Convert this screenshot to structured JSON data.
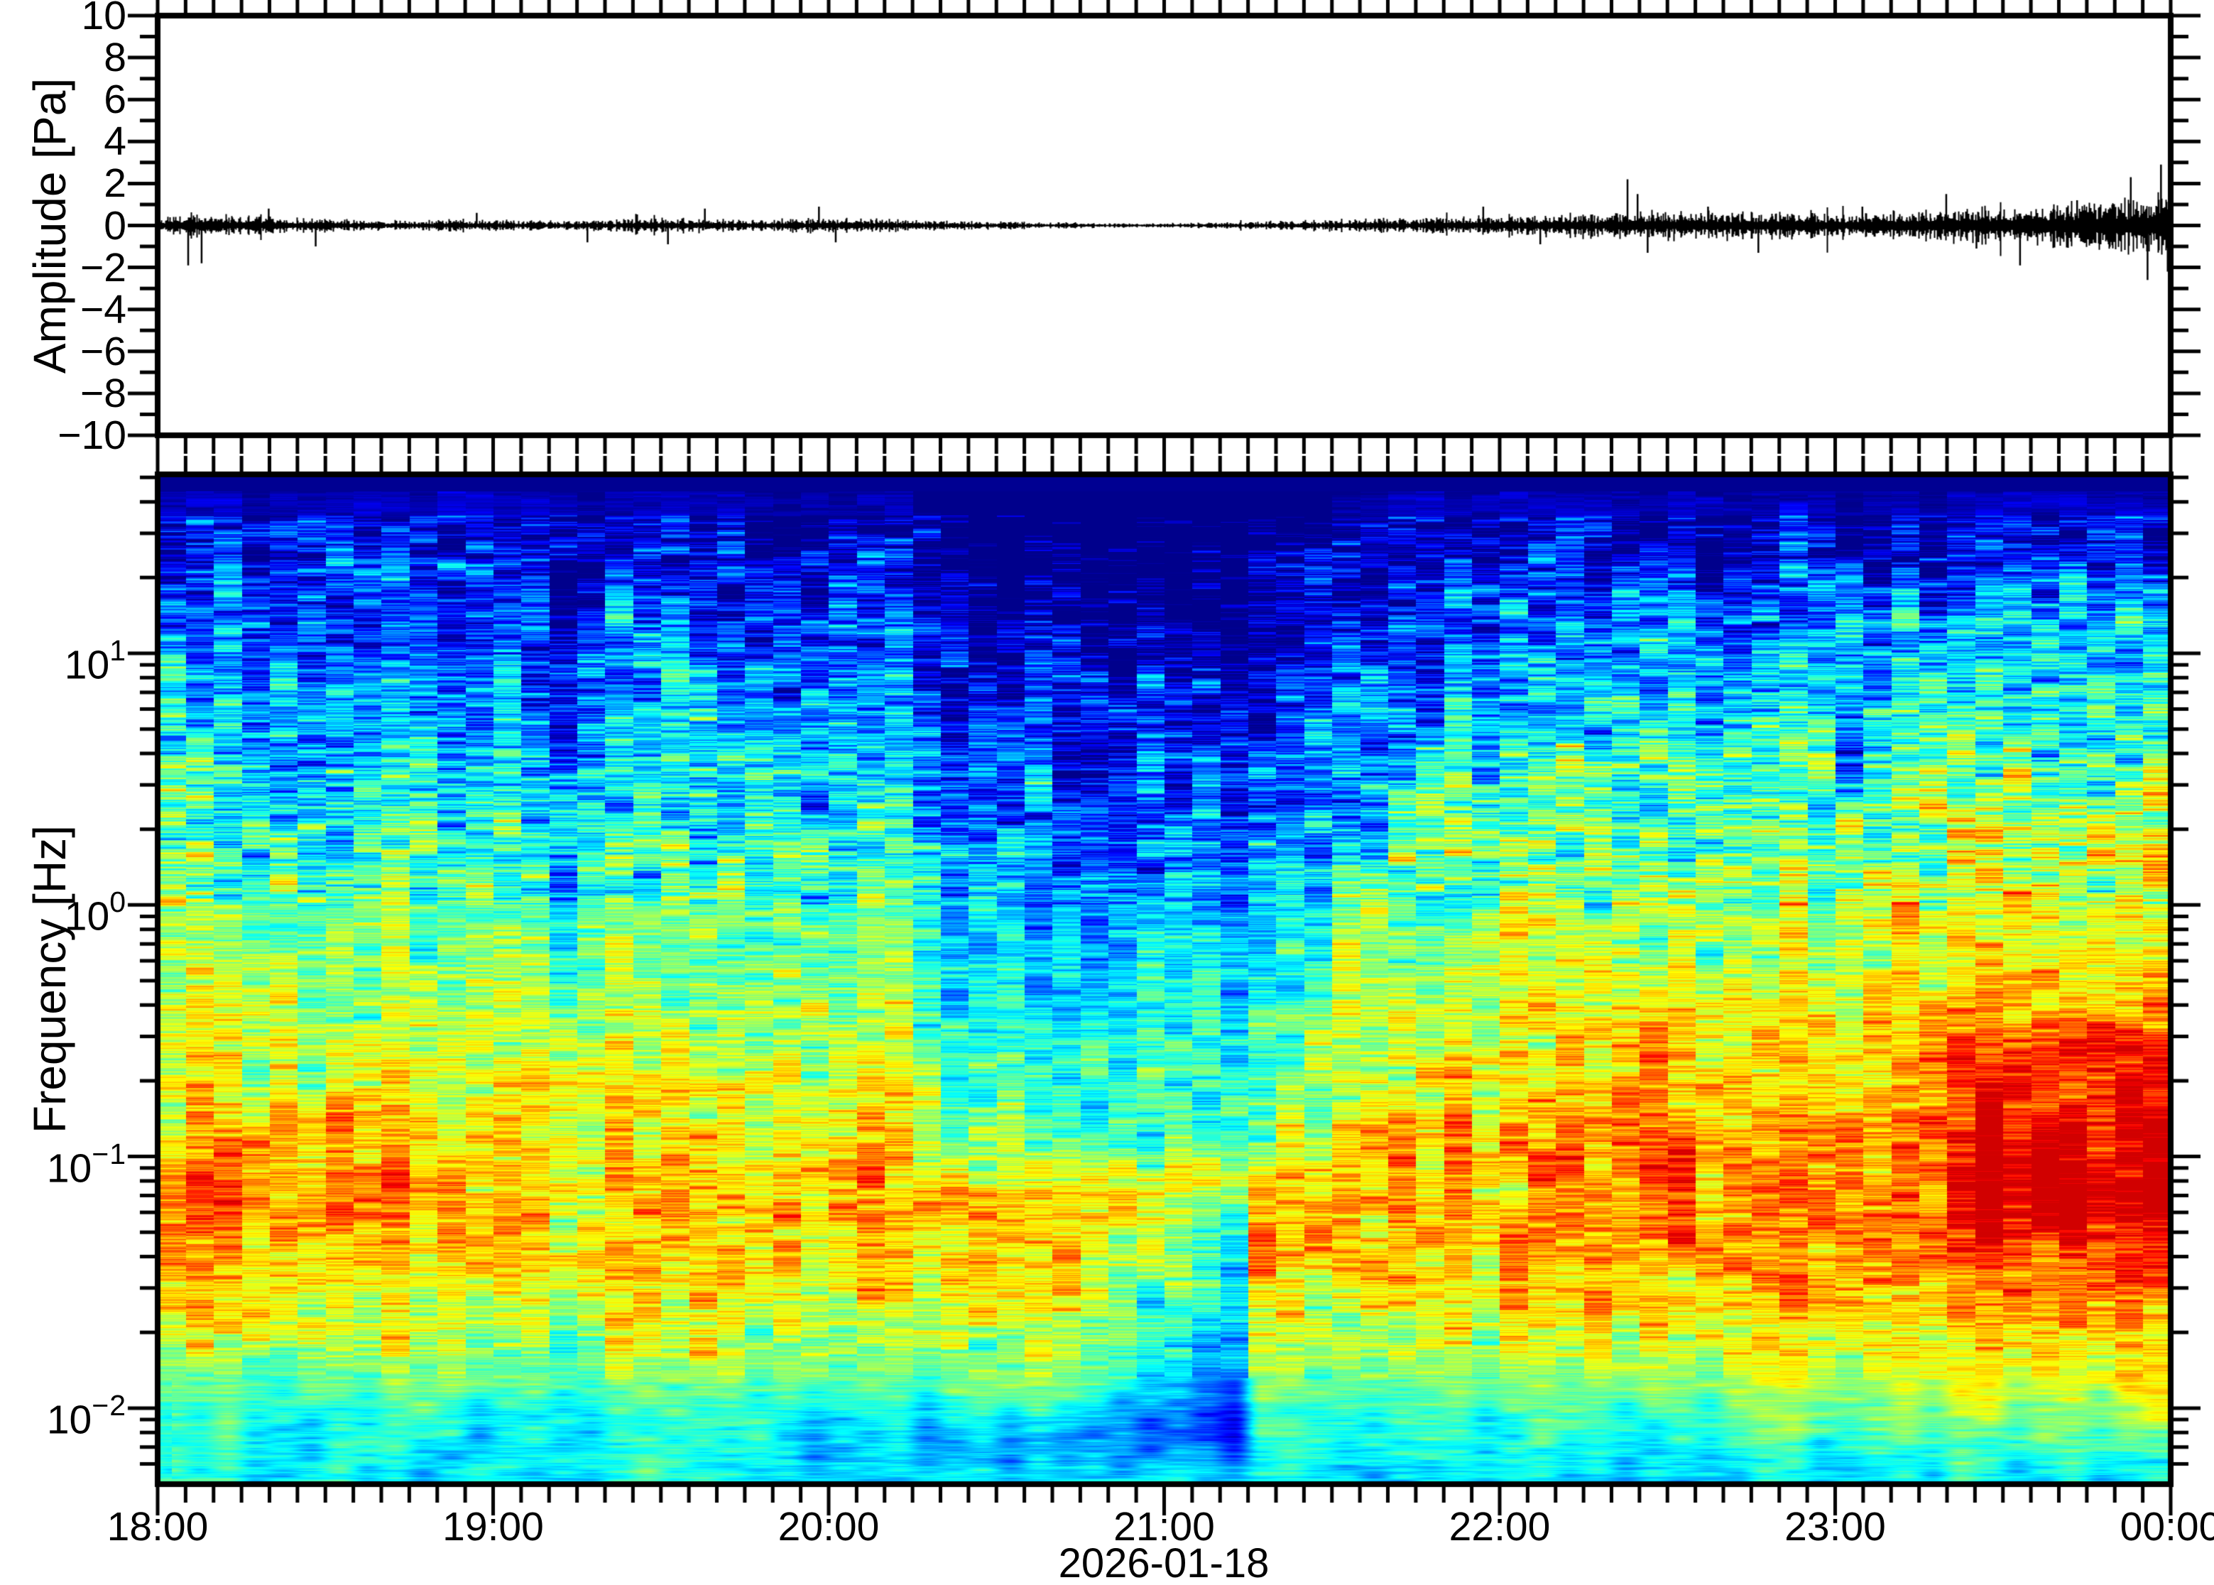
{
  "figure": {
    "background": "#ffffff",
    "frame_color": "#000000",
    "trace_color": "#000000",
    "date_label": "2026-01-18"
  },
  "chart_data": [
    {
      "type": "line",
      "title": "",
      "ylabel": "Amplitude [Pa]",
      "xlabel": "",
      "ylim": [
        -10,
        10
      ],
      "x_span_hours": 6,
      "x_start": "18:00",
      "x_end": "00:00",
      "y_ticks": [
        {
          "v": 10,
          "label": "10"
        },
        {
          "v": 8,
          "label": "8"
        },
        {
          "v": 6,
          "label": "6"
        },
        {
          "v": 4,
          "label": "4"
        },
        {
          "v": 2,
          "label": "2"
        },
        {
          "v": 0,
          "label": "0"
        },
        {
          "v": -2,
          "label": "−2"
        },
        {
          "v": -4,
          "label": "−4"
        },
        {
          "v": -6,
          "label": "−6"
        },
        {
          "v": -8,
          "label": "−8"
        },
        {
          "v": -10,
          "label": "−10"
        }
      ],
      "y_minor_step": 1,
      "waveform": {
        "mean_pa": 0,
        "envelope_pa": [
          [
            0.0,
            0.16
          ],
          [
            0.08,
            0.3
          ],
          [
            0.15,
            0.34
          ],
          [
            0.2,
            0.27
          ],
          [
            0.3,
            0.22
          ],
          [
            0.45,
            0.18
          ],
          [
            0.6,
            0.15
          ],
          [
            0.75,
            0.13
          ],
          [
            0.9,
            0.16
          ],
          [
            1.05,
            0.13
          ],
          [
            1.2,
            0.13
          ],
          [
            1.35,
            0.15
          ],
          [
            1.5,
            0.18
          ],
          [
            1.6,
            0.2
          ],
          [
            1.75,
            0.15
          ],
          [
            1.9,
            0.18
          ],
          [
            2.05,
            0.18
          ],
          [
            2.2,
            0.15
          ],
          [
            2.35,
            0.12
          ],
          [
            2.5,
            0.1
          ],
          [
            2.65,
            0.08
          ],
          [
            2.8,
            0.06
          ],
          [
            2.95,
            0.06
          ],
          [
            3.1,
            0.07
          ],
          [
            3.25,
            0.09
          ],
          [
            3.4,
            0.12
          ],
          [
            3.55,
            0.16
          ],
          [
            3.7,
            0.19
          ],
          [
            3.85,
            0.22
          ],
          [
            4.0,
            0.25
          ],
          [
            4.15,
            0.28
          ],
          [
            4.3,
            0.33
          ],
          [
            4.45,
            0.38
          ],
          [
            4.6,
            0.34
          ],
          [
            4.75,
            0.36
          ],
          [
            4.9,
            0.33
          ],
          [
            5.0,
            0.3
          ],
          [
            5.1,
            0.33
          ],
          [
            5.2,
            0.35
          ],
          [
            5.35,
            0.42
          ],
          [
            5.5,
            0.48
          ],
          [
            5.65,
            0.55
          ],
          [
            5.8,
            0.65
          ],
          [
            5.9,
            0.72
          ],
          [
            6.0,
            0.8
          ]
        ],
        "spikes_pa": [
          [
            0.09,
            -1.9
          ],
          [
            0.13,
            -1.8
          ],
          [
            0.33,
            0.8
          ],
          [
            0.47,
            -1.0
          ],
          [
            0.95,
            0.6
          ],
          [
            1.28,
            -0.8
          ],
          [
            1.52,
            -0.9
          ],
          [
            1.63,
            0.8
          ],
          [
            1.97,
            0.9
          ],
          [
            2.02,
            -0.8
          ],
          [
            3.95,
            0.9
          ],
          [
            4.12,
            -0.9
          ],
          [
            4.38,
            2.2
          ],
          [
            4.41,
            1.5
          ],
          [
            4.44,
            -1.3
          ],
          [
            4.62,
            0.9
          ],
          [
            4.77,
            -1.3
          ],
          [
            5.08,
            0.9
          ],
          [
            5.33,
            1.5
          ],
          [
            5.42,
            -1.1
          ],
          [
            5.55,
            -1.9
          ],
          [
            5.72,
            1.2
          ],
          [
            5.88,
            2.3
          ],
          [
            5.93,
            -2.6
          ],
          [
            5.97,
            2.9
          ],
          [
            5.99,
            -2.2
          ]
        ]
      }
    },
    {
      "type": "heatmap",
      "title": "",
      "ylabel": "Frequency [Hz]",
      "xlabel": "2026-01-18",
      "y_scale": "log",
      "freq_limits_hz": [
        0.005,
        51.5
      ],
      "time_span_hours": 6,
      "x_tick_labels": [
        {
          "h": 0,
          "label": "18:00"
        },
        {
          "h": 1,
          "label": "19:00"
        },
        {
          "h": 2,
          "label": "20:00"
        },
        {
          "h": 3,
          "label": "21:00"
        },
        {
          "h": 4,
          "label": "22:00"
        },
        {
          "h": 5,
          "label": "23:00"
        },
        {
          "h": 6,
          "label": "00:00"
        }
      ],
      "x_minor_minutes": 5,
      "freq_ticks": [
        {
          "exp": 1,
          "base": "10",
          "exp_label": "1"
        },
        {
          "exp": 0,
          "base": "10",
          "exp_label": "0"
        },
        {
          "exp": -1,
          "base": "10",
          "exp_label": "−1"
        },
        {
          "exp": -2,
          "base": "10",
          "exp_label": "−2"
        }
      ],
      "colormap": "jet",
      "column_minutes": 5,
      "top_band": {
        "log_f_above": 1.645,
        "value": 0.018
      },
      "base_profile_logf_value": [
        [
          -2.3,
          0.36
        ],
        [
          -2.15,
          0.38
        ],
        [
          -2.0,
          0.42
        ],
        [
          -1.8,
          0.52
        ],
        [
          -1.6,
          0.6
        ],
        [
          -1.4,
          0.66
        ],
        [
          -1.1,
          0.68
        ],
        [
          -0.8,
          0.62
        ],
        [
          -0.4,
          0.55
        ],
        [
          0.0,
          0.47
        ],
        [
          0.4,
          0.38
        ],
        [
          0.7,
          0.3
        ],
        [
          1.0,
          0.22
        ],
        [
          1.3,
          0.13
        ],
        [
          1.5,
          0.07
        ],
        [
          1.72,
          0.03
        ]
      ],
      "time_features": [
        {
          "name": "evening-quiet-period",
          "t0": 2.25,
          "t1": 3.5,
          "l0": -1.2,
          "l1": 1.8,
          "dv": -0.17,
          "ramp": false
        },
        {
          "name": "2100-lowfreq-quiet",
          "t0": 2.85,
          "t1": 3.3,
          "l0": -2.3,
          "l1": -1.0,
          "dv": -0.2,
          "ramp": false
        },
        {
          "name": "2000-bottom-blue",
          "t0": 1.9,
          "t1": 3.3,
          "l0": -2.35,
          "l1": -1.9,
          "dv": -0.1,
          "ramp": false
        },
        {
          "name": "1900-bottom-blue",
          "t0": 0.9,
          "t1": 1.05,
          "l0": -2.35,
          "l1": -1.85,
          "dv": -0.12,
          "ramp": false
        },
        {
          "name": "quiet-column-1853",
          "t0": 0.84,
          "t1": 0.95,
          "l0": -0.6,
          "l1": 1.6,
          "dv": -0.11,
          "ramp": false
        },
        {
          "name": "quiet-column-1908",
          "t0": 1.1,
          "t1": 1.3,
          "l0": -0.6,
          "l1": 1.6,
          "dv": -0.1,
          "ramp": false
        },
        {
          "name": "rising-noise-all-freq",
          "t0": 3.4,
          "t1": 6.0,
          "l0": -2.3,
          "l1": 1.45,
          "dv": 0.13,
          "ramp": true
        },
        {
          "name": "microbarom-red-growth",
          "t0": 4.8,
          "t1": 6.0,
          "l0": -1.5,
          "l1": -0.35,
          "dv": 0.1,
          "ramp": true
        },
        {
          "name": "2330-strong-red",
          "t0": 5.35,
          "t1": 6.0,
          "l0": -1.4,
          "l1": -0.3,
          "dv": 0.08,
          "ramp": false
        },
        {
          "name": "event-2230-red-blob",
          "t0": 4.33,
          "t1": 4.58,
          "l0": -1.25,
          "l1": -0.25,
          "dv": 0.13,
          "ramp": false
        },
        {
          "name": "event-2230-column",
          "t0": 4.33,
          "t1": 4.58,
          "l0": -0.25,
          "l1": 1.5,
          "dv": 0.06,
          "ramp": false
        },
        {
          "name": "early-microbaroms",
          "t0": 0.0,
          "t1": 0.8,
          "l0": -1.45,
          "l1": -0.75,
          "dv": 0.06,
          "ramp": false
        },
        {
          "name": "1810-low-orange",
          "t0": 0.05,
          "t1": 0.45,
          "l0": -1.85,
          "l1": -1.5,
          "dv": 0.1,
          "ramp": false
        },
        {
          "name": "start-bright-highfreq",
          "t0": 0.0,
          "t1": 0.25,
          "l0": 0.3,
          "l1": 1.5,
          "dv": 0.05,
          "ramp": false
        }
      ]
    }
  ]
}
